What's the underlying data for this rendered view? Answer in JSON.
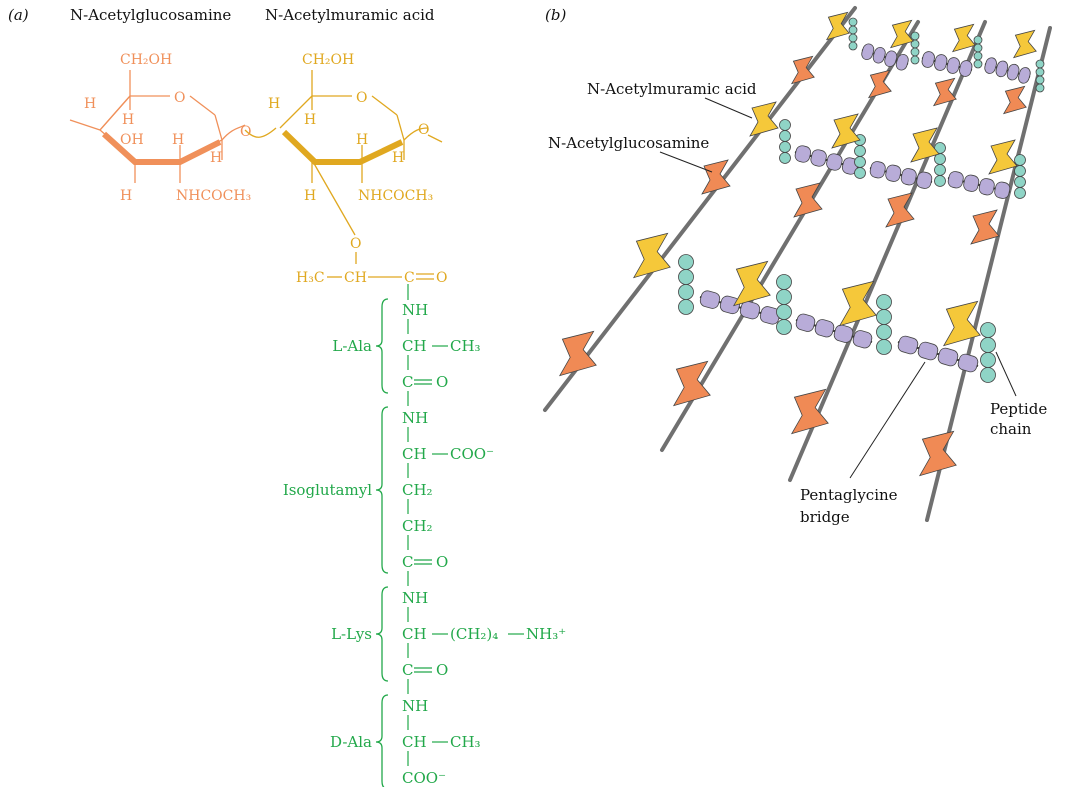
{
  "panel_a": {
    "label": "(a)",
    "title_glc": "N-Acetylglucosamine",
    "title_mur": "N-Acetylmuramic acid",
    "glc": {
      "ch2oh": "CH₂OH",
      "o_ring": "O",
      "h1": "H",
      "h2": "H",
      "oh": "OH",
      "h3": "H",
      "h4": "H",
      "h5": "H",
      "nhcoch3": "NHCOCH₃",
      "o_link": "O"
    },
    "mur": {
      "ch2oh": "CH₂OH",
      "o_ring": "O",
      "h1": "H",
      "h2": "H",
      "h3": "H",
      "h4": "H",
      "h5": "H",
      "nhcoch3": "NHCOCH₃",
      "o_link": "O",
      "o_ether": "O",
      "lactyl": [
        "H₃C",
        "CH",
        "C",
        "O"
      ]
    },
    "residues": [
      {
        "name": "L-Ala",
        "lines": [
          {
            "main": "NH",
            "side": ""
          },
          {
            "main": "CH",
            "side": "CH₃"
          },
          {
            "main": "C",
            "side": "O"
          }
        ]
      },
      {
        "name": "Isoglutamyl",
        "lines": [
          {
            "main": "NH",
            "side": ""
          },
          {
            "main": "CH",
            "side": "COO⁻"
          },
          {
            "main": "CH₂",
            "side": ""
          },
          {
            "main": "CH₂",
            "side": ""
          },
          {
            "main": "C",
            "side": "O"
          }
        ]
      },
      {
        "name": "L-Lys",
        "lines": [
          {
            "main": "NH",
            "side": ""
          },
          {
            "main": "CH",
            "side": "(CH₂)₄",
            "side2": "NH₃⁺"
          },
          {
            "main": "C",
            "side": "O"
          }
        ]
      },
      {
        "name": "D-Ala",
        "lines": [
          {
            "main": "NH",
            "side": ""
          },
          {
            "main": "CH",
            "side": "CH₃"
          },
          {
            "main": "COO⁻",
            "side": ""
          }
        ]
      }
    ]
  },
  "panel_b": {
    "label": "(b)",
    "callouts": {
      "muramic": "N-Acetylmuramic acid",
      "glucosamine": "N-Acetylglucosamine",
      "peptide_1": "Peptide",
      "peptide_2": "chain",
      "bridge_1": "Pentaglycine",
      "bridge_2": "bridge"
    }
  },
  "colors": {
    "glc": "#f0905a",
    "mur": "#e0a820",
    "peptide": "#22a84a",
    "glc_shape": "#f08a55",
    "mur_shape": "#f5c83a",
    "bead": "#8fd4c6",
    "bridge": "#b8acd8",
    "strand": "#707070"
  }
}
